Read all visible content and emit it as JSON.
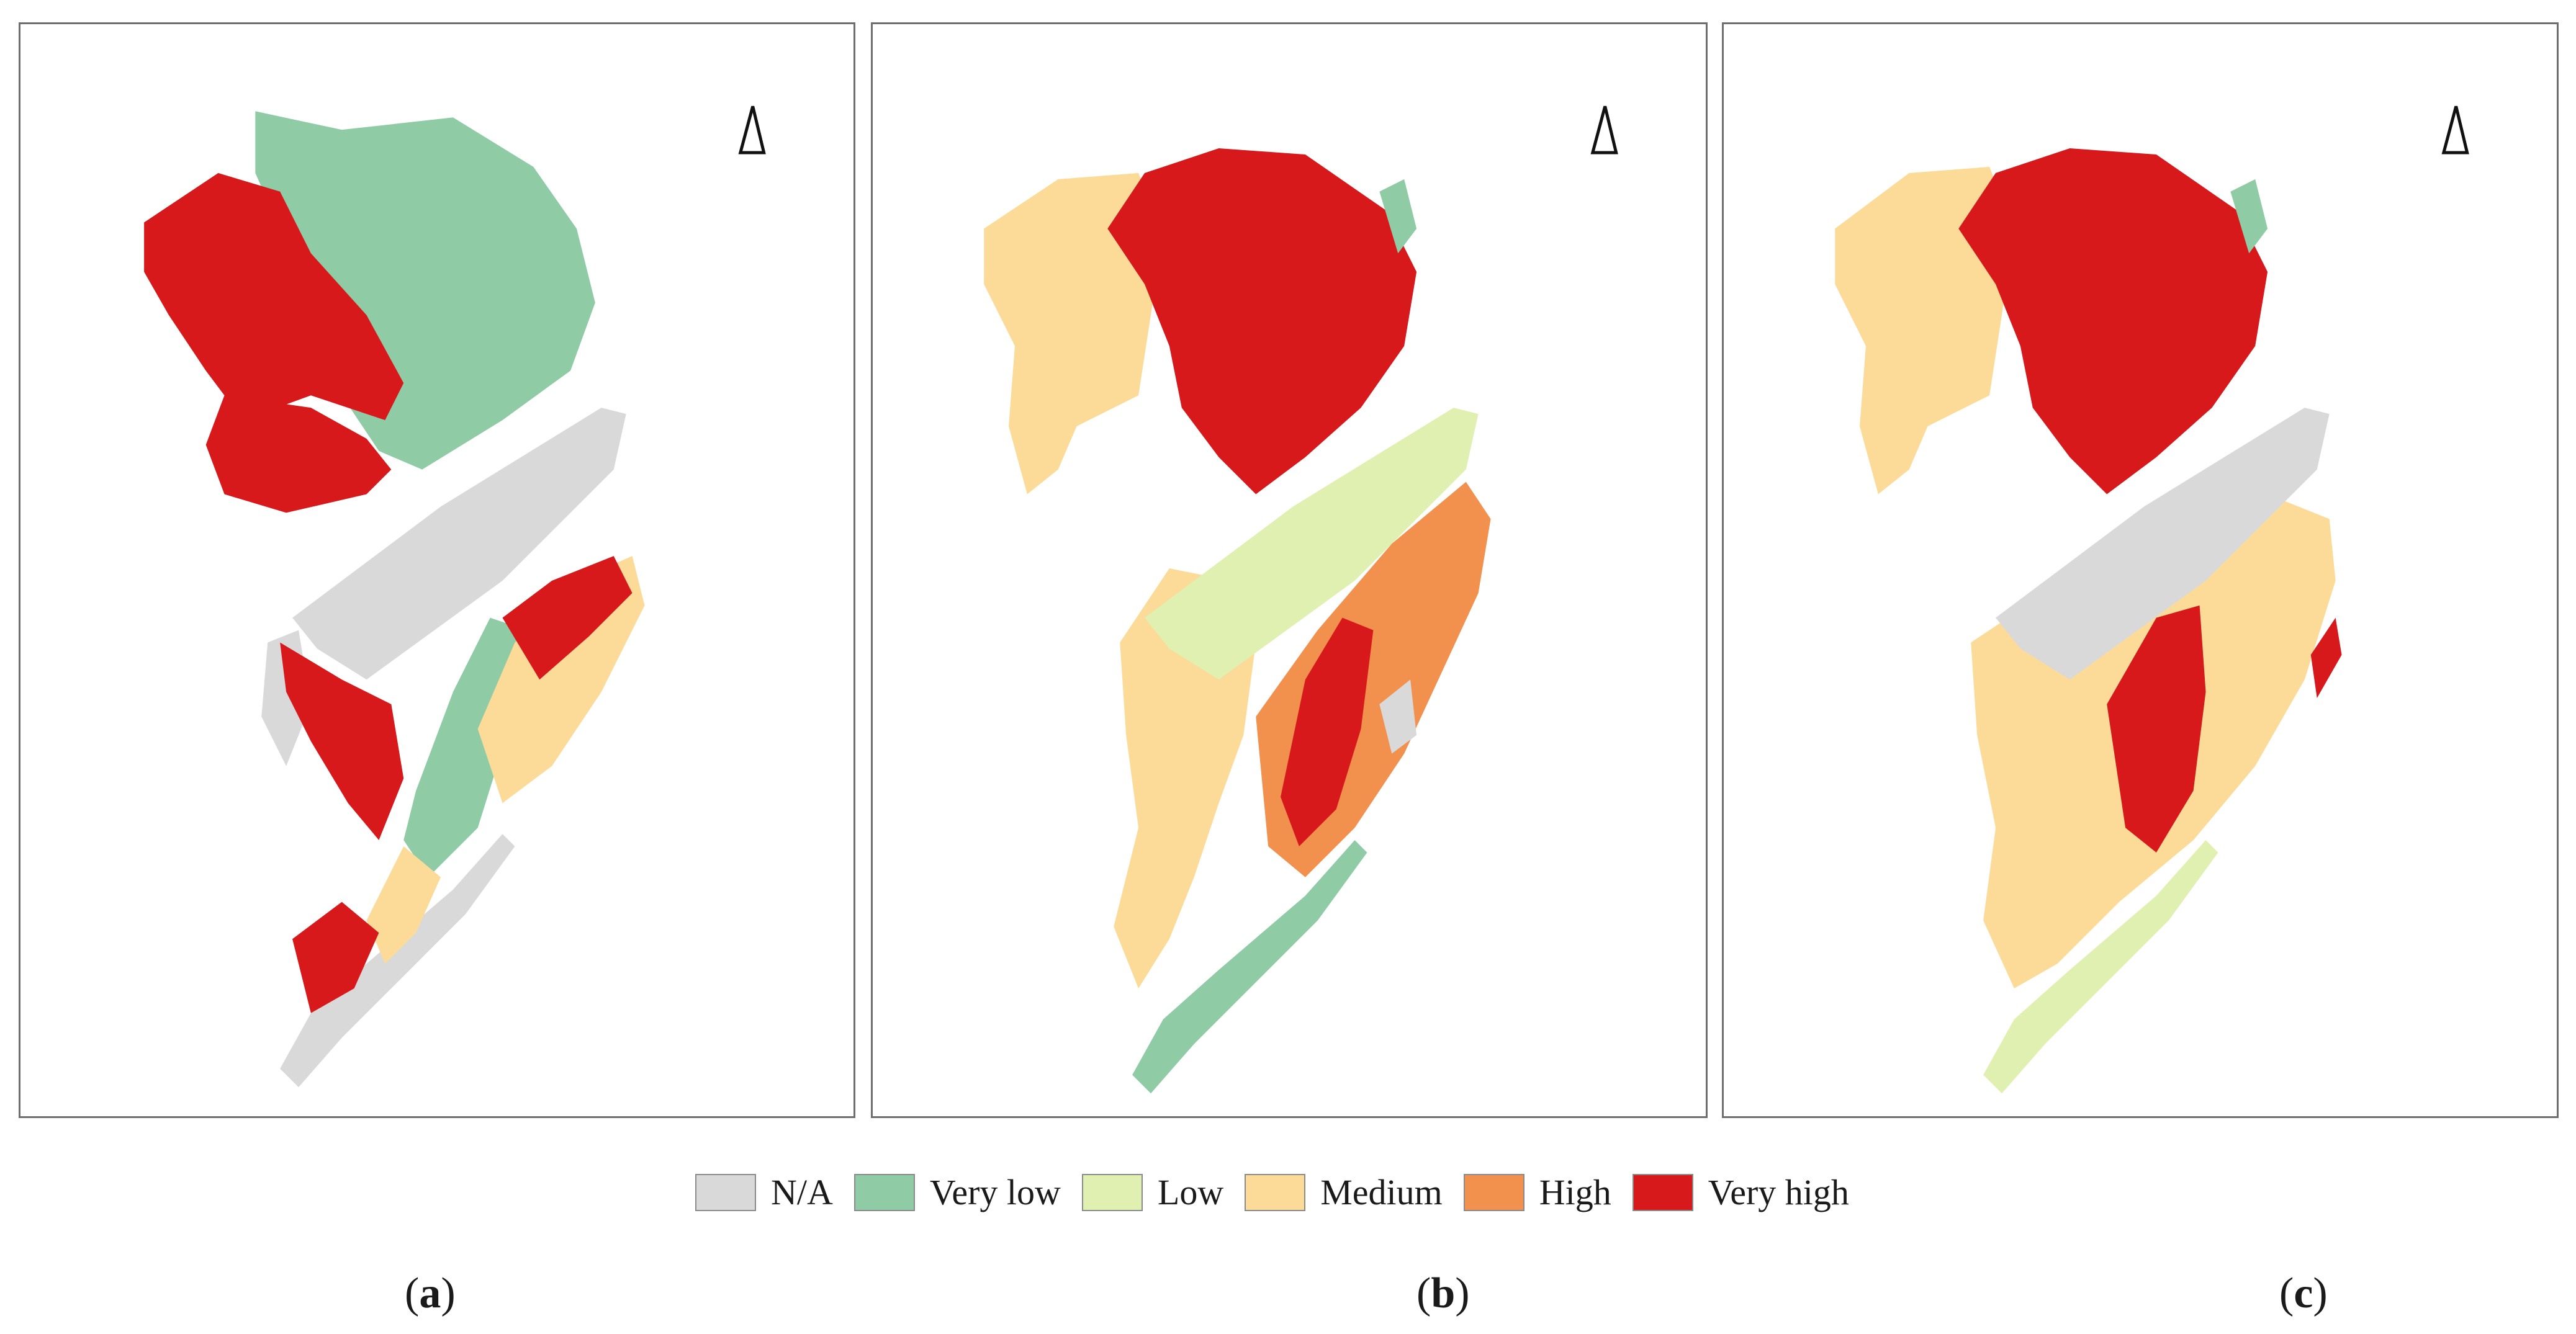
{
  "figure": {
    "panels": [
      {
        "id": "a",
        "caption": "a",
        "north_arrow": "north-arrow"
      },
      {
        "id": "b",
        "caption": "b",
        "north_arrow": "north-arrow"
      },
      {
        "id": "c",
        "caption": "c",
        "north_arrow": "north-arrow"
      }
    ]
  },
  "legend": {
    "items": [
      {
        "label": "N/A",
        "color": "#d9d9d9"
      },
      {
        "label": "Very low",
        "color": "#8fcca5"
      },
      {
        "label": "Low",
        "color": "#dff0b0"
      },
      {
        "label": "Medium",
        "color": "#fcdb98"
      },
      {
        "label": "High",
        "color": "#f2904e"
      },
      {
        "label": "Very high",
        "color": "#d7191c"
      }
    ]
  },
  "captions": {
    "a_open": "(",
    "a_letter": "a",
    "a_close": ")",
    "b_open": "(",
    "b_letter": "b",
    "b_close": ")",
    "c_open": "(",
    "c_letter": "c",
    "c_close": ")"
  }
}
